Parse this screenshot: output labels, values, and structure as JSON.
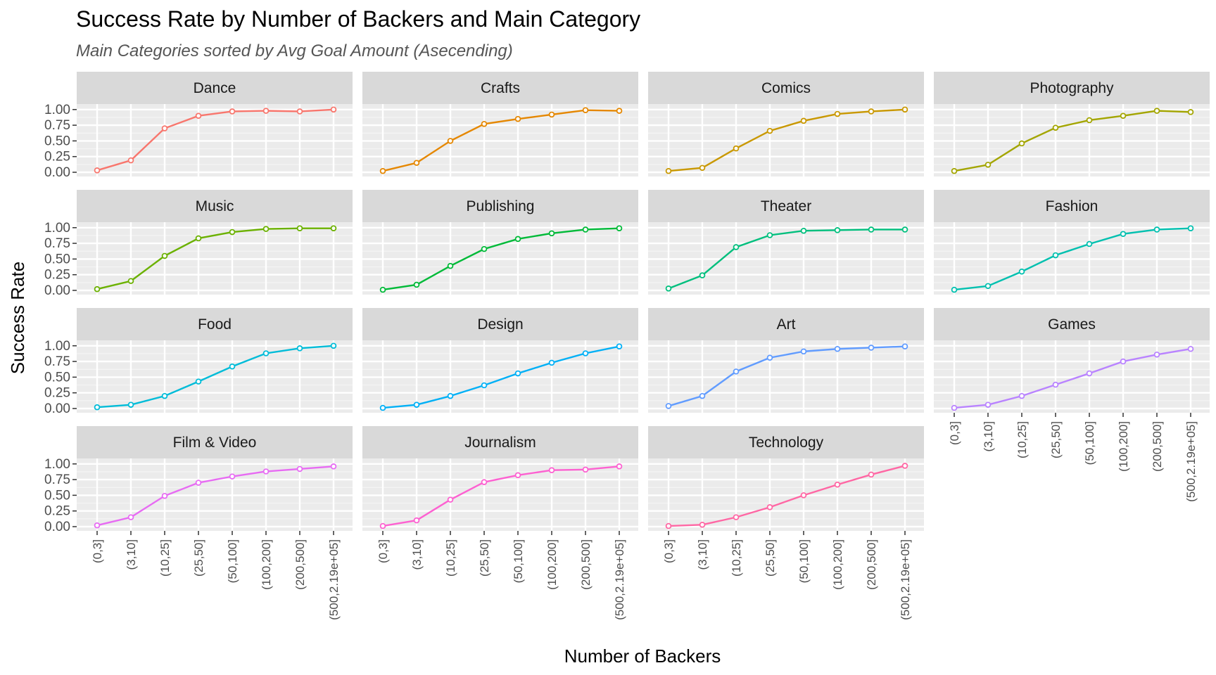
{
  "chart_data": {
    "type": "line",
    "title": "Success Rate by Number of Backers and Main Category",
    "subtitle": "Main Categories sorted by Avg Goal Amount (Asecending)",
    "xlabel": "Number of Backers",
    "ylabel": "Success Rate",
    "categories": [
      "(0,3]",
      "(3,10]",
      "(10,25]",
      "(25,50]",
      "(50,100]",
      "(100,200]",
      "(200,500]",
      "(500,2.19e+05]"
    ],
    "y_ticks": [
      "0.00",
      "0.25",
      "0.50",
      "0.75",
      "1.00"
    ],
    "ylim": [
      0,
      1.02
    ],
    "grid": true,
    "legend": "none",
    "facets": [
      {
        "name": "Dance",
        "color": "#F8766D",
        "values": [
          0.03,
          0.19,
          0.7,
          0.9,
          0.97,
          0.98,
          0.97,
          1.0
        ]
      },
      {
        "name": "Crafts",
        "color": "#E58700",
        "values": [
          0.02,
          0.15,
          0.5,
          0.77,
          0.85,
          0.92,
          0.99,
          0.98
        ]
      },
      {
        "name": "Comics",
        "color": "#C99800",
        "values": [
          0.02,
          0.07,
          0.38,
          0.66,
          0.82,
          0.93,
          0.97,
          1.0
        ]
      },
      {
        "name": "Photography",
        "color": "#A3A500",
        "values": [
          0.02,
          0.12,
          0.46,
          0.71,
          0.83,
          0.9,
          0.98,
          0.96
        ]
      },
      {
        "name": "Music",
        "color": "#6BB100",
        "values": [
          0.02,
          0.15,
          0.55,
          0.83,
          0.93,
          0.98,
          0.99,
          0.99
        ]
      },
      {
        "name": "Publishing",
        "color": "#00BA38",
        "values": [
          0.01,
          0.09,
          0.39,
          0.66,
          0.82,
          0.91,
          0.97,
          0.99
        ]
      },
      {
        "name": "Theater",
        "color": "#00BF7D",
        "values": [
          0.03,
          0.24,
          0.69,
          0.88,
          0.95,
          0.96,
          0.97,
          0.97
        ]
      },
      {
        "name": "Fashion",
        "color": "#00C0AF",
        "values": [
          0.01,
          0.07,
          0.3,
          0.56,
          0.74,
          0.9,
          0.97,
          0.99
        ]
      },
      {
        "name": "Food",
        "color": "#00BCD8",
        "values": [
          0.02,
          0.06,
          0.2,
          0.43,
          0.67,
          0.88,
          0.96,
          1.0
        ]
      },
      {
        "name": "Design",
        "color": "#00B0F6",
        "values": [
          0.01,
          0.06,
          0.2,
          0.37,
          0.56,
          0.73,
          0.88,
          0.99
        ]
      },
      {
        "name": "Art",
        "color": "#619CFF",
        "values": [
          0.04,
          0.2,
          0.59,
          0.81,
          0.91,
          0.95,
          0.97,
          0.99
        ]
      },
      {
        "name": "Games",
        "color": "#B983FF",
        "values": [
          0.01,
          0.06,
          0.2,
          0.38,
          0.56,
          0.75,
          0.86,
          0.95
        ]
      },
      {
        "name": "Film & Video",
        "color": "#E76BF3",
        "values": [
          0.02,
          0.15,
          0.49,
          0.7,
          0.8,
          0.88,
          0.92,
          0.96
        ]
      },
      {
        "name": "Journalism",
        "color": "#FD61D1",
        "values": [
          0.01,
          0.1,
          0.43,
          0.71,
          0.82,
          0.9,
          0.91,
          0.96
        ]
      },
      {
        "name": "Technology",
        "color": "#FF67A4",
        "values": [
          0.01,
          0.03,
          0.15,
          0.31,
          0.5,
          0.67,
          0.83,
          0.97
        ]
      }
    ]
  }
}
